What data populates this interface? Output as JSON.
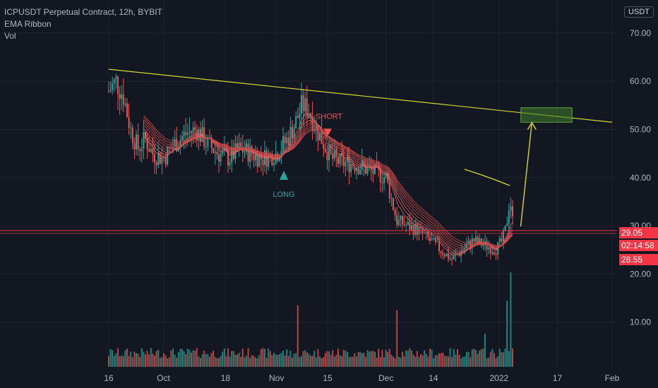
{
  "header": {
    "title": "ICPUSDT Perpetual Contract, 12h, BYBIT",
    "indicators": [
      "EMA Ribbon",
      "Vol"
    ],
    "currency": "USDT"
  },
  "price_tags": {
    "last": "29.05",
    "countdown": "02:14:58",
    "low": "28.55"
  },
  "annotations": {
    "short": "SHORT",
    "long": "LONG"
  },
  "colors": {
    "background": "#131722",
    "grid": "#1e222d",
    "up": "#26a69a",
    "down": "#ef5350",
    "trendline": "#d4d634",
    "target_box": "#3f7d2a",
    "price_line": "#f23645",
    "axis_text": "#b2b5be"
  },
  "chart_data": {
    "type": "candlestick",
    "title": "ICPUSDT Perpetual Contract, 12h, BYBIT",
    "ylim": [
      5,
      77
    ],
    "y_ticks": [
      "70.00",
      "60.00",
      "50.00",
      "40.00",
      "30.00",
      "20.00",
      "10.00"
    ],
    "x_ticks": [
      "16",
      "Oct",
      "18",
      "Nov",
      "15",
      "Dec",
      "14",
      "2022",
      "17",
      "Feb"
    ],
    "price_path": [
      [
        "2021-09-16",
        58
      ],
      [
        "2021-09-18",
        60
      ],
      [
        "2021-09-20",
        57
      ],
      [
        "2021-09-22",
        50
      ],
      [
        "2021-09-24",
        46
      ],
      [
        "2021-09-26",
        48
      ],
      [
        "2021-09-28",
        45
      ],
      [
        "2021-10-01",
        44
      ],
      [
        "2021-10-04",
        47
      ],
      [
        "2021-10-07",
        49
      ],
      [
        "2021-10-10",
        50
      ],
      [
        "2021-10-13",
        47
      ],
      [
        "2021-10-16",
        45
      ],
      [
        "2021-10-19",
        44
      ],
      [
        "2021-10-22",
        46
      ],
      [
        "2021-10-25",
        45
      ],
      [
        "2021-10-28",
        44
      ],
      [
        "2021-11-01",
        45
      ],
      [
        "2021-11-04",
        48
      ],
      [
        "2021-11-06",
        51
      ],
      [
        "2021-11-08",
        55
      ],
      [
        "2021-11-10",
        54
      ],
      [
        "2021-11-12",
        50
      ],
      [
        "2021-11-14",
        47
      ],
      [
        "2021-11-16",
        44
      ],
      [
        "2021-11-19",
        43
      ],
      [
        "2021-11-22",
        43
      ],
      [
        "2021-11-25",
        42
      ],
      [
        "2021-11-28",
        41
      ],
      [
        "2021-12-01",
        40
      ],
      [
        "2021-12-04",
        31
      ],
      [
        "2021-12-07",
        30
      ],
      [
        "2021-12-10",
        29
      ],
      [
        "2021-12-13",
        27
      ],
      [
        "2021-12-16",
        25
      ],
      [
        "2021-12-19",
        23
      ],
      [
        "2021-12-22",
        25
      ],
      [
        "2021-12-25",
        27
      ],
      [
        "2021-12-28",
        26
      ],
      [
        "2021-12-31",
        25
      ],
      [
        "2022-01-02",
        27
      ],
      [
        "2022-01-03",
        30
      ],
      [
        "2022-01-04",
        36
      ],
      [
        "2022-01-05",
        29
      ]
    ],
    "volume_spikes": [
      [
        "2021-11-07",
        13
      ],
      [
        "2021-12-04",
        12
      ],
      [
        "2021-12-28",
        7
      ],
      [
        "2022-01-03",
        14
      ],
      [
        "2022-01-04",
        20
      ]
    ],
    "drawings": {
      "trendline": {
        "from": [
          "2021-09-16",
          62.5
        ],
        "to": [
          "2022-02-01",
          51.5
        ]
      },
      "target_zone": {
        "from": [
          "2022-01-07",
          51.5
        ],
        "to": [
          "2022-01-21",
          54.5
        ]
      },
      "projection_arrow": {
        "from": [
          "2022-01-05",
          29
        ],
        "to": [
          "2022-01-10",
          52
        ]
      },
      "short_signal": [
        "2021-11-15",
        49
      ],
      "long_signal": [
        "2021-11-03",
        41
      ],
      "support_line": 29
    }
  }
}
